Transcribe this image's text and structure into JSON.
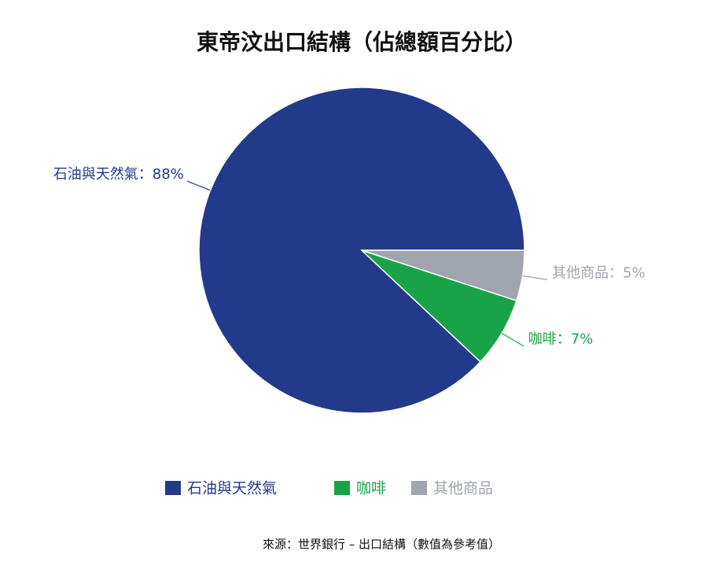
{
  "chart_data": {
    "type": "pie",
    "title": "東帝汶出口結構（佔總額百分比）",
    "categories": [
      "石油與天然氣",
      "咖啡",
      "其他商品"
    ],
    "values": [
      88,
      7,
      5
    ],
    "value_labels": [
      "石油與天然氣：88%",
      "咖啡：7%",
      "其他商品：5%"
    ],
    "colors": [
      "#233a8a",
      "#19a349",
      "#a0a4ad"
    ],
    "legend": "bottom",
    "source": "來源：世界銀行 – 出口結構（數值為參考值）"
  }
}
